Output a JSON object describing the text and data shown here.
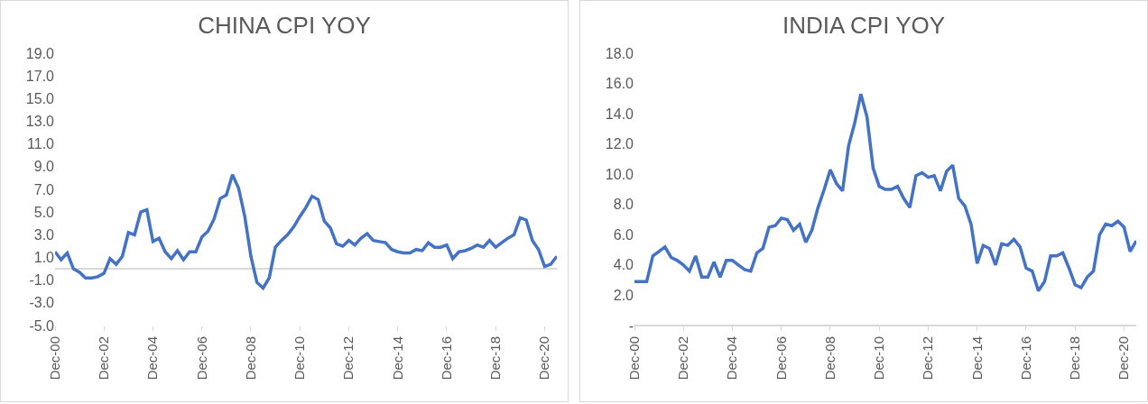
{
  "chart_data": [
    {
      "type": "line",
      "title": "CHINA CPI YOY",
      "x": [
        "2000-12",
        "2001-03",
        "2001-06",
        "2001-09",
        "2001-12",
        "2002-03",
        "2002-06",
        "2002-09",
        "2002-12",
        "2003-03",
        "2003-06",
        "2003-09",
        "2003-12",
        "2004-03",
        "2004-06",
        "2004-09",
        "2004-12",
        "2005-03",
        "2005-06",
        "2005-09",
        "2005-12",
        "2006-03",
        "2006-06",
        "2006-09",
        "2006-12",
        "2007-03",
        "2007-06",
        "2007-09",
        "2007-12",
        "2008-03",
        "2008-06",
        "2008-09",
        "2008-12",
        "2009-03",
        "2009-06",
        "2009-09",
        "2009-12",
        "2010-03",
        "2010-06",
        "2010-09",
        "2010-12",
        "2011-03",
        "2011-06",
        "2011-09",
        "2011-12",
        "2012-03",
        "2012-06",
        "2012-09",
        "2012-12",
        "2013-03",
        "2013-06",
        "2013-09",
        "2013-12",
        "2014-03",
        "2014-06",
        "2014-09",
        "2014-12",
        "2015-03",
        "2015-06",
        "2015-09",
        "2015-12",
        "2016-03",
        "2016-06",
        "2016-09",
        "2016-12",
        "2017-03",
        "2017-06",
        "2017-09",
        "2017-12",
        "2018-03",
        "2018-06",
        "2018-09",
        "2018-12",
        "2019-03",
        "2019-06",
        "2019-09",
        "2019-12",
        "2020-03",
        "2020-06",
        "2020-09",
        "2020-12",
        "2021-03",
        "2021-06"
      ],
      "series": [
        {
          "color": "#4472c4",
          "values": [
            1.5,
            0.8,
            1.4,
            0.0,
            -0.3,
            -0.8,
            -0.8,
            -0.7,
            -0.4,
            0.9,
            0.4,
            1.1,
            3.2,
            3.0,
            5.0,
            5.2,
            2.4,
            2.7,
            1.5,
            0.9,
            1.6,
            0.8,
            1.5,
            1.5,
            2.8,
            3.3,
            4.4,
            6.2,
            6.5,
            8.3,
            7.1,
            4.6,
            1.1,
            -1.2,
            -1.7,
            -0.8,
            1.9,
            2.5,
            3.0,
            3.7,
            4.6,
            5.4,
            6.4,
            6.1,
            4.2,
            3.6,
            2.2,
            2.0,
            2.5,
            2.1,
            2.7,
            3.1,
            2.5,
            2.4,
            2.3,
            1.7,
            1.5,
            1.4,
            1.4,
            1.7,
            1.6,
            2.3,
            1.9,
            1.9,
            2.1,
            0.9,
            1.5,
            1.6,
            1.8,
            2.1,
            1.9,
            2.5,
            1.9,
            2.3,
            2.7,
            3.0,
            4.5,
            4.3,
            2.5,
            1.7,
            0.2,
            0.4,
            1.1
          ]
        }
      ],
      "xlim": [
        "2000-12",
        "2021-06"
      ],
      "xticks": [
        {
          "value": "2000-12",
          "label": "Dec-00"
        },
        {
          "value": "2002-12",
          "label": "Dec-02"
        },
        {
          "value": "2004-12",
          "label": "Dec-04"
        },
        {
          "value": "2006-12",
          "label": "Dec-06"
        },
        {
          "value": "2008-12",
          "label": "Dec-08"
        },
        {
          "value": "2010-12",
          "label": "Dec-10"
        },
        {
          "value": "2012-12",
          "label": "Dec-12"
        },
        {
          "value": "2014-12",
          "label": "Dec-14"
        },
        {
          "value": "2016-12",
          "label": "Dec-16"
        },
        {
          "value": "2018-12",
          "label": "Dec-18"
        },
        {
          "value": "2020-12",
          "label": "Dec-20"
        }
      ],
      "ylim": [
        -5,
        19
      ],
      "yticks": [
        {
          "value": -5,
          "label": "-5.0"
        },
        {
          "value": -3,
          "label": "-3.0"
        },
        {
          "value": -1,
          "label": "-1.0"
        },
        {
          "value": 1,
          "label": "1.0"
        },
        {
          "value": 3,
          "label": "3.0"
        },
        {
          "value": 5,
          "label": "5.0"
        },
        {
          "value": 7,
          "label": "7.0"
        },
        {
          "value": 9,
          "label": "9.0"
        },
        {
          "value": 11,
          "label": "11.0"
        },
        {
          "value": 13,
          "label": "13.0"
        },
        {
          "value": 15,
          "label": "15.0"
        },
        {
          "value": 17,
          "label": "17.0"
        },
        {
          "value": 19,
          "label": "19.0"
        }
      ],
      "grid": false,
      "marker": "none",
      "line_style": "solid"
    },
    {
      "type": "line",
      "title": "INDIA CPI YOY",
      "x": [
        "2000-12",
        "2001-03",
        "2001-06",
        "2001-09",
        "2001-12",
        "2002-03",
        "2002-06",
        "2002-09",
        "2002-12",
        "2003-03",
        "2003-06",
        "2003-09",
        "2003-12",
        "2004-03",
        "2004-06",
        "2004-09",
        "2004-12",
        "2005-03",
        "2005-06",
        "2005-09",
        "2005-12",
        "2006-03",
        "2006-06",
        "2006-09",
        "2006-12",
        "2007-03",
        "2007-06",
        "2007-09",
        "2007-12",
        "2008-03",
        "2008-06",
        "2008-09",
        "2008-12",
        "2009-03",
        "2009-06",
        "2009-09",
        "2009-12",
        "2010-03",
        "2010-06",
        "2010-09",
        "2010-12",
        "2011-03",
        "2011-06",
        "2011-09",
        "2011-12",
        "2012-03",
        "2012-06",
        "2012-09",
        "2012-12",
        "2013-03",
        "2013-06",
        "2013-09",
        "2013-12",
        "2014-03",
        "2014-06",
        "2014-09",
        "2014-12",
        "2015-03",
        "2015-06",
        "2015-09",
        "2015-12",
        "2016-03",
        "2016-06",
        "2016-09",
        "2016-12",
        "2017-03",
        "2017-06",
        "2017-09",
        "2017-12",
        "2018-03",
        "2018-06",
        "2018-09",
        "2018-12",
        "2019-03",
        "2019-06",
        "2019-09",
        "2019-12",
        "2020-03",
        "2020-06",
        "2020-09",
        "2020-12",
        "2021-03",
        "2021-06"
      ],
      "series": [
        {
          "color": "#4472c4",
          "values": [
            2.9,
            2.9,
            2.9,
            4.6,
            4.9,
            5.2,
            4.5,
            4.3,
            4.0,
            3.6,
            4.6,
            3.2,
            3.2,
            4.2,
            3.2,
            4.3,
            4.3,
            4.0,
            3.7,
            3.6,
            4.8,
            5.1,
            6.5,
            6.6,
            7.1,
            7.0,
            6.3,
            6.7,
            5.5,
            6.3,
            7.8,
            9.0,
            10.3,
            9.4,
            8.9,
            11.9,
            13.4,
            15.3,
            13.8,
            10.4,
            9.2,
            9.0,
            9.0,
            9.2,
            8.4,
            7.8,
            9.9,
            10.1,
            9.8,
            9.9,
            8.9,
            10.2,
            10.6,
            8.4,
            7.9,
            6.7,
            4.1,
            5.3,
            5.1,
            4.0,
            5.4,
            5.3,
            5.7,
            5.2,
            3.8,
            3.6,
            2.3,
            2.9,
            4.6,
            4.6,
            4.8,
            3.8,
            2.7,
            2.5,
            3.2,
            3.6,
            6.0,
            6.7,
            6.6,
            6.9,
            6.5,
            4.9,
            5.6
          ]
        }
      ],
      "xlim": [
        "2000-12",
        "2021-06"
      ],
      "xticks": [
        {
          "value": "2000-12",
          "label": "Dec-00"
        },
        {
          "value": "2002-12",
          "label": "Dec-02"
        },
        {
          "value": "2004-12",
          "label": "Dec-04"
        },
        {
          "value": "2006-12",
          "label": "Dec-06"
        },
        {
          "value": "2008-12",
          "label": "Dec-08"
        },
        {
          "value": "2010-12",
          "label": "Dec-10"
        },
        {
          "value": "2012-12",
          "label": "Dec-12"
        },
        {
          "value": "2014-12",
          "label": "Dec-14"
        },
        {
          "value": "2016-12",
          "label": "Dec-16"
        },
        {
          "value": "2018-12",
          "label": "Dec-18"
        },
        {
          "value": "2020-12",
          "label": "Dec-20"
        }
      ],
      "ylim": [
        0,
        18
      ],
      "yticks": [
        {
          "value": 0,
          "label": "-"
        },
        {
          "value": 2,
          "label": "2.0"
        },
        {
          "value": 4,
          "label": "4.0"
        },
        {
          "value": 6,
          "label": "6.0"
        },
        {
          "value": 8,
          "label": "8.0"
        },
        {
          "value": 10,
          "label": "10.0"
        },
        {
          "value": 12,
          "label": "12.0"
        },
        {
          "value": 14,
          "label": "14.0"
        },
        {
          "value": 16,
          "label": "16.0"
        },
        {
          "value": 18,
          "label": "18.0"
        }
      ],
      "grid": false,
      "marker": "none",
      "line_style": "solid"
    }
  ]
}
